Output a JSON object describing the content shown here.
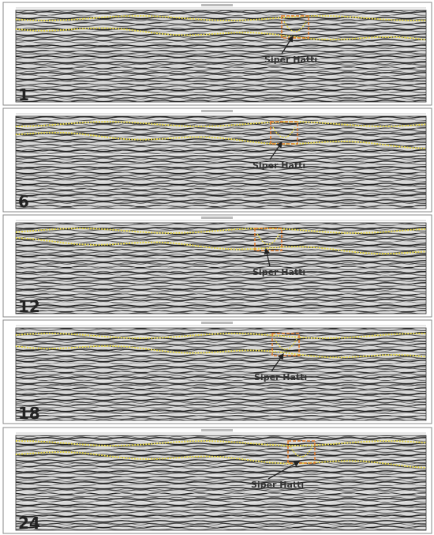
{
  "panels": [
    {
      "number": "1",
      "annotation": "Siper Hattı"
    },
    {
      "number": "6",
      "annotation": "Siper Hattı"
    },
    {
      "number": "12",
      "annotation": "Siper Hattı"
    },
    {
      "number": "18",
      "annotation": "Siper Hattı"
    },
    {
      "number": "24",
      "annotation": "Siper Hattı"
    }
  ]
}
